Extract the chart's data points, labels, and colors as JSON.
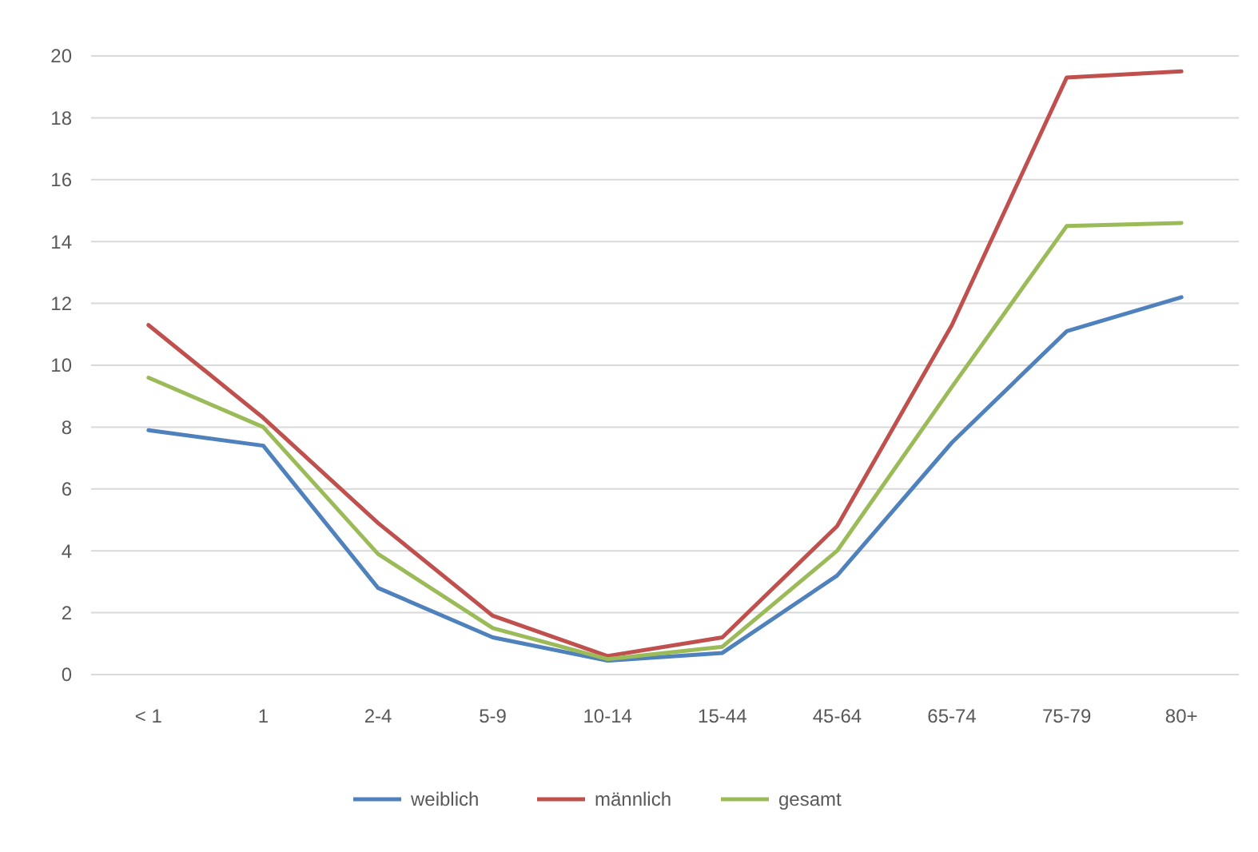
{
  "chart_data": {
    "type": "line",
    "categories": [
      "< 1",
      "1",
      "2-4",
      "5-9",
      "10-14",
      "15-44",
      "45-64",
      "65-74",
      "75-79",
      "80+"
    ],
    "series": [
      {
        "name": "weiblich",
        "color": "#4f81bd",
        "values": [
          7.9,
          7.4,
          2.8,
          1.2,
          0.45,
          0.7,
          3.2,
          7.5,
          11.1,
          12.2
        ]
      },
      {
        "name": "männlich",
        "color": "#c0504d",
        "values": [
          11.3,
          8.3,
          4.9,
          1.9,
          0.6,
          1.2,
          4.8,
          11.3,
          19.3,
          19.5
        ]
      },
      {
        "name": "gesamt",
        "color": "#9bbb59",
        "values": [
          9.6,
          8.0,
          3.9,
          1.5,
          0.5,
          0.9,
          4.0,
          9.3,
          14.5,
          14.6
        ]
      }
    ],
    "ylim": [
      0,
      20
    ],
    "yticks": [
      0,
      2,
      4,
      6,
      8,
      10,
      12,
      14,
      16,
      18,
      20
    ],
    "grid": "y",
    "legend": "bottom",
    "marker": "none",
    "line_style": "solid"
  }
}
